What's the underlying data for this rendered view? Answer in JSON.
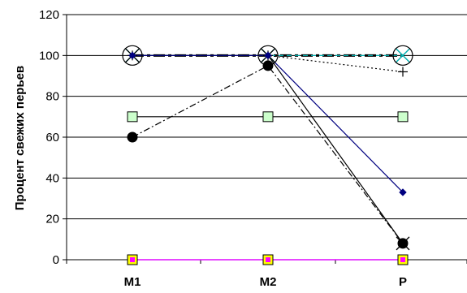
{
  "chart_data": {
    "type": "line",
    "title": "",
    "xlabel": "",
    "ylabel": "Процент свежих перьев",
    "categories": [
      "M1",
      "M2",
      "P"
    ],
    "ylim": [
      0,
      120
    ],
    "yticks": [
      0,
      20,
      40,
      60,
      80,
      100,
      120
    ],
    "grid": "horizontal",
    "legend": "none",
    "series": [
      {
        "values": [
          100,
          100,
          100
        ],
        "color": "#000000",
        "style": "heavy-dashdot",
        "marker": "circle-x"
      },
      {
        "values": [
          100,
          100,
          100
        ],
        "color": "#00c0c0",
        "style": "dashed",
        "marker": "x"
      },
      {
        "values": [
          100,
          100,
          92
        ],
        "color": "#000000",
        "style": "dotted",
        "marker": "plus"
      },
      {
        "values": [
          100,
          100,
          8
        ],
        "color": "#000000",
        "style": "solid",
        "marker": "x"
      },
      {
        "values": [
          100,
          100,
          33
        ],
        "color": "#000080",
        "style": "solid",
        "marker": "diamond"
      },
      {
        "values": [
          60,
          95,
          8
        ],
        "color": "#000000",
        "style": "dashdot",
        "marker": "filled-circle"
      },
      {
        "values": [
          70,
          70,
          70
        ],
        "color": "#000000",
        "style": "solid",
        "marker": "square",
        "marker_fill": "#ccffcc"
      },
      {
        "values": [
          0,
          0,
          0
        ],
        "color": "#0000ff",
        "style": "solid",
        "marker": "square",
        "marker_fill": "#ffff00"
      },
      {
        "values": [
          0,
          0,
          0
        ],
        "color": "#ff00ff",
        "style": "solid",
        "marker": "small-square"
      }
    ]
  }
}
